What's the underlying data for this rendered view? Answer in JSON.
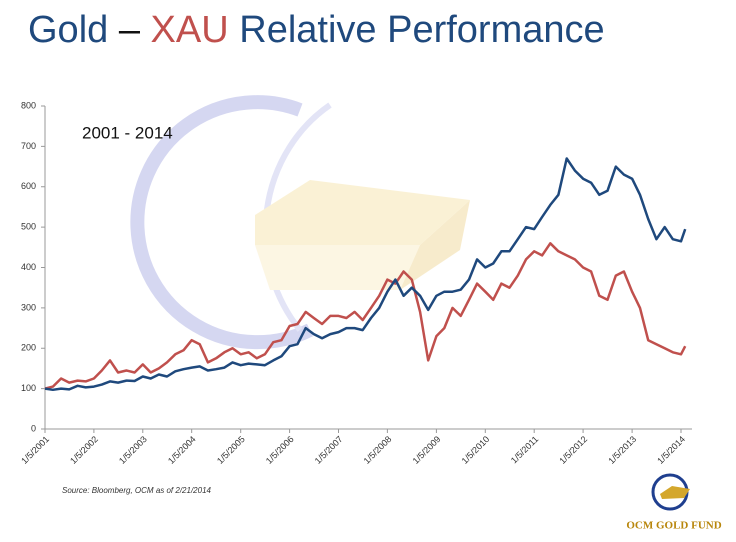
{
  "chart_data": {
    "type": "line",
    "title": {
      "dash": "–",
      "rest": "Relative Performance"
    },
    "annotation": "2001 - 2014",
    "source": "Source: Bloomberg, OCM as of 2/21/2014",
    "logo_text": "OCM GOLD FUND",
    "x": [
      "1/5/2001",
      "3/5/2001",
      "5/5/2001",
      "7/5/2001",
      "9/5/2001",
      "11/5/2001",
      "1/5/2002",
      "3/5/2002",
      "5/5/2002",
      "7/5/2002",
      "9/5/2002",
      "11/5/2002",
      "1/5/2003",
      "3/5/2003",
      "5/5/2003",
      "7/5/2003",
      "9/5/2003",
      "11/5/2003",
      "1/5/2004",
      "3/5/2004",
      "5/5/2004",
      "7/5/2004",
      "9/5/2004",
      "11/5/2004",
      "1/5/2005",
      "3/5/2005",
      "5/5/2005",
      "7/5/2005",
      "9/5/2005",
      "11/5/2005",
      "1/5/2006",
      "3/5/2006",
      "5/5/2006",
      "7/5/2006",
      "9/5/2006",
      "11/5/2006",
      "1/5/2007",
      "3/5/2007",
      "5/5/2007",
      "7/5/2007",
      "9/5/2007",
      "11/5/2007",
      "1/5/2008",
      "3/5/2008",
      "5/5/2008",
      "7/5/2008",
      "9/5/2008",
      "11/5/2008",
      "1/5/2009",
      "3/5/2009",
      "5/5/2009",
      "7/5/2009",
      "9/5/2009",
      "11/5/2009",
      "1/5/2010",
      "3/5/2010",
      "5/5/2010",
      "7/5/2010",
      "9/5/2010",
      "11/5/2010",
      "1/5/2011",
      "3/5/2011",
      "5/5/2011",
      "7/5/2011",
      "9/5/2011",
      "11/5/2011",
      "1/5/2012",
      "3/5/2012",
      "5/5/2012",
      "7/5/2012",
      "9/5/2012",
      "11/5/2012",
      "1/5/2013",
      "3/5/2013",
      "5/5/2013",
      "7/5/2013",
      "9/5/2013",
      "11/5/2013",
      "1/5/2014",
      "2/5/2014"
    ],
    "series": [
      {
        "name": "Gold",
        "color": "#1f497d",
        "values": [
          100,
          97,
          100,
          98,
          107,
          103,
          105,
          110,
          118,
          115,
          120,
          119,
          130,
          125,
          135,
          130,
          143,
          148,
          152,
          155,
          145,
          148,
          152,
          165,
          158,
          162,
          160,
          158,
          170,
          180,
          205,
          210,
          250,
          235,
          225,
          235,
          240,
          250,
          250,
          245,
          275,
          300,
          340,
          370,
          330,
          350,
          330,
          295,
          330,
          340,
          340,
          345,
          370,
          420,
          400,
          410,
          440,
          440,
          470,
          500,
          495,
          525,
          555,
          580,
          670,
          640,
          620,
          610,
          580,
          590,
          650,
          630,
          620,
          580,
          520,
          470,
          500,
          470,
          465,
          495
        ]
      },
      {
        "name": "XAU",
        "color": "#c0504d",
        "values": [
          100,
          105,
          125,
          115,
          120,
          118,
          125,
          145,
          170,
          140,
          145,
          140,
          160,
          140,
          150,
          165,
          185,
          195,
          220,
          210,
          165,
          175,
          190,
          200,
          185,
          190,
          175,
          185,
          215,
          220,
          255,
          260,
          290,
          275,
          260,
          280,
          280,
          275,
          290,
          270,
          300,
          330,
          370,
          360,
          390,
          370,
          290,
          170,
          230,
          250,
          300,
          280,
          320,
          360,
          340,
          320,
          360,
          350,
          380,
          420,
          440,
          430,
          460,
          440,
          430,
          420,
          400,
          390,
          330,
          320,
          380,
          390,
          340,
          300,
          220,
          210,
          200,
          190,
          185,
          205
        ]
      }
    ],
    "xticks": [
      "1/5/2001",
      "1/5/2002",
      "1/5/2003",
      "1/5/2004",
      "1/5/2005",
      "1/5/2006",
      "1/5/2007",
      "1/5/2008",
      "1/5/2009",
      "1/5/2010",
      "1/5/2011",
      "1/5/2012",
      "1/5/2013",
      "1/5/2014"
    ],
    "ylim": [
      0,
      800
    ],
    "yticks": [
      0,
      100,
      200,
      300,
      400,
      500,
      600,
      700,
      800
    ]
  }
}
